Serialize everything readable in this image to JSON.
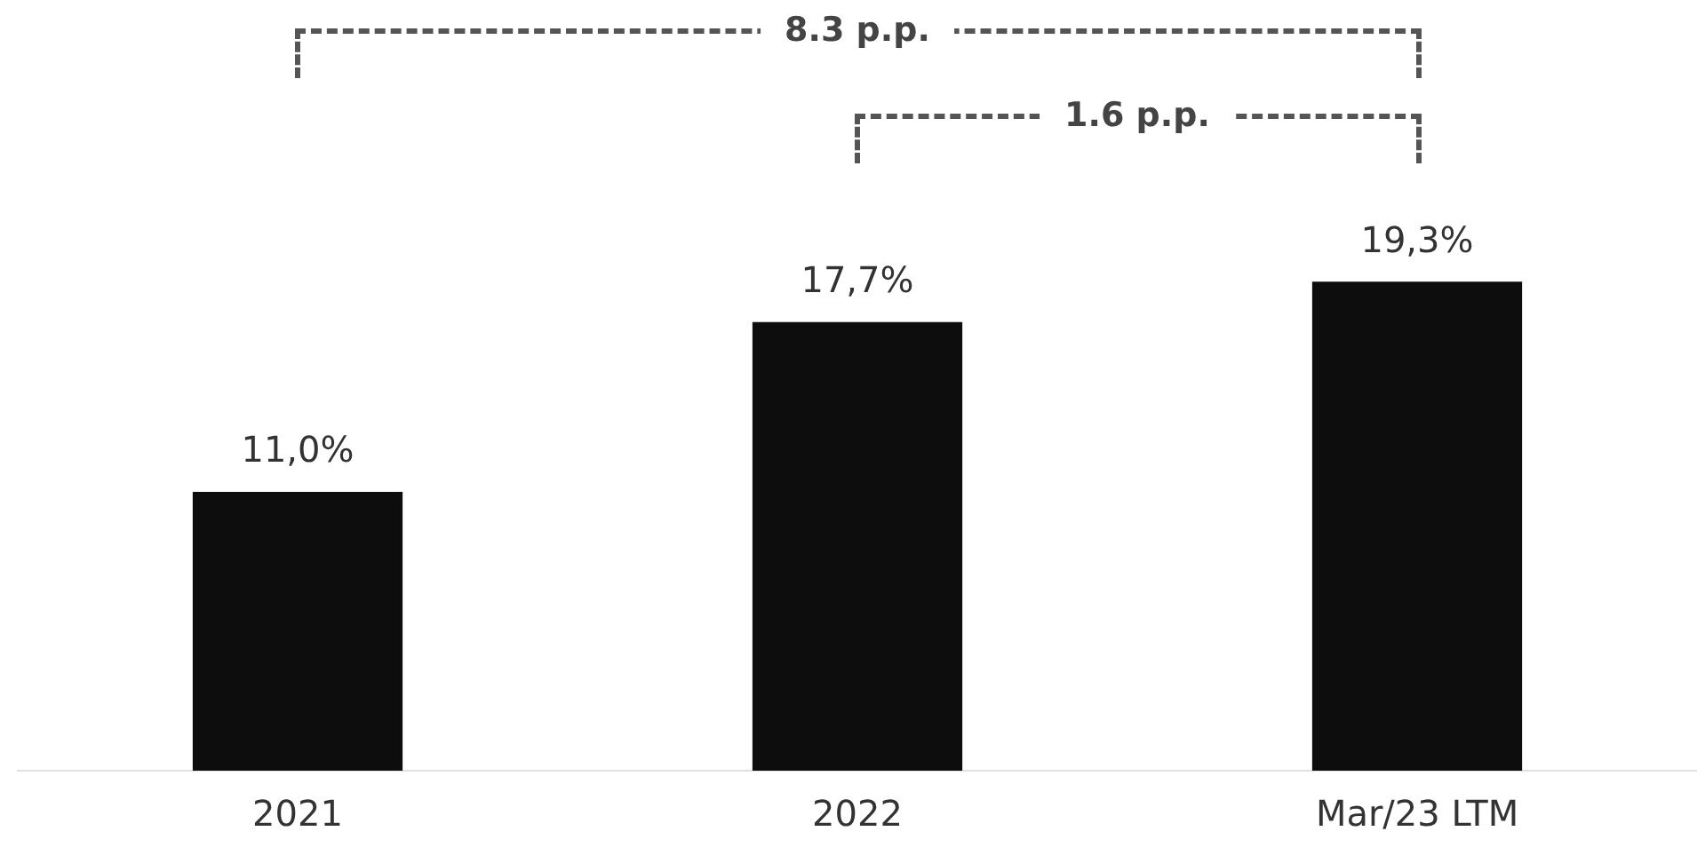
{
  "chart_data": {
    "type": "bar",
    "categories": [
      "2021",
      "2022",
      "Mar/23 LTM"
    ],
    "values": [
      11.0,
      17.7,
      19.3
    ],
    "color": "#0d0d0d",
    "value_labels": [
      "11,0%",
      "17,7%",
      "19,3%"
    ],
    "annotations": [
      "8.3 p.p.",
      "1.6 p.p."
    ],
    "grid": false,
    "legend": false
  }
}
